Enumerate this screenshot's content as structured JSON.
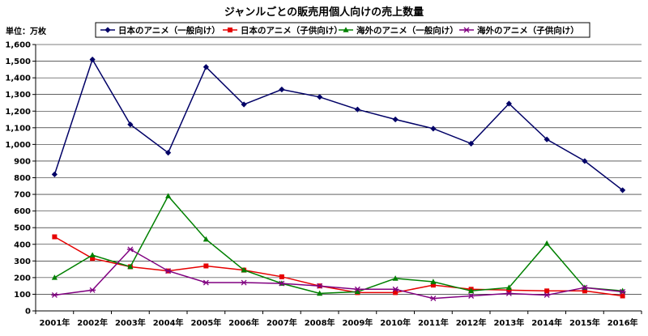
{
  "chart_data": {
    "type": "line",
    "title": "ジャンルごとの販売用個人向けの売上数量",
    "unit_label": "単位：万枚",
    "categories": [
      "2001年",
      "2002年",
      "2003年",
      "2004年",
      "2005年",
      "2006年",
      "2007年",
      "2008年",
      "2009年",
      "2010年",
      "2011年",
      "2012年",
      "2013年",
      "2014年",
      "2015年",
      "2016年"
    ],
    "ylim": [
      0,
      1600
    ],
    "yticks": [
      0,
      100,
      200,
      300,
      400,
      500,
      600,
      700,
      800,
      900,
      1000,
      1100,
      1200,
      1300,
      1400,
      1500,
      1600
    ],
    "ytick_labels": [
      "0",
      "100",
      "200",
      "300",
      "400",
      "500",
      "600",
      "700",
      "800",
      "900",
      "1,000",
      "1,100",
      "1,200",
      "1,300",
      "1,400",
      "1,500",
      "1,600"
    ],
    "grid": "horizontal",
    "legend_position": "top",
    "series": [
      {
        "name": "日本のアニメ（一般向け）",
        "color": "#000066",
        "marker": "diamond",
        "values": [
          820,
          1510,
          1120,
          950,
          1465,
          1240,
          1330,
          1285,
          1210,
          1150,
          1095,
          1005,
          1245,
          1030,
          900,
          725
        ]
      },
      {
        "name": "日本のアニメ（子供向け）",
        "color": "#e60000",
        "marker": "square",
        "values": [
          445,
          315,
          265,
          240,
          270,
          245,
          205,
          150,
          110,
          110,
          155,
          130,
          125,
          120,
          120,
          90
        ]
      },
      {
        "name": "海外のアニメ（一般向け）",
        "color": "#008000",
        "marker": "triangle",
        "values": [
          200,
          335,
          265,
          690,
          430,
          245,
          165,
          105,
          115,
          195,
          175,
          120,
          140,
          405,
          140,
          120
        ]
      },
      {
        "name": "海外のアニメ（子供向け）",
        "color": "#800080",
        "marker": "cross",
        "values": [
          95,
          125,
          370,
          240,
          170,
          170,
          165,
          150,
          130,
          130,
          75,
          90,
          105,
          95,
          140,
          115
        ]
      }
    ]
  }
}
